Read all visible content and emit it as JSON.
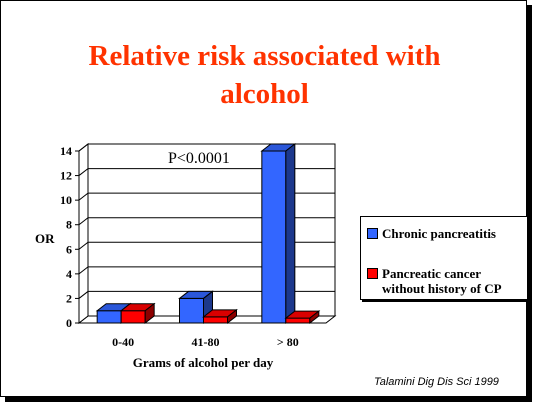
{
  "slide": {
    "title_line1": "Relative risk associated with",
    "title_line2": "alcohol",
    "title_color": "#ff3300",
    "citation": "Talamini Dig Dis Sci 1999"
  },
  "chart_data": {
    "type": "bar",
    "categories": [
      "0-40",
      "41-80",
      "> 80"
    ],
    "series": [
      {
        "name": "Chronic pancreatitis",
        "values": [
          1,
          2,
          14
        ],
        "color": "#3366ff"
      },
      {
        "name": "Pancreatic cancer without history of CP",
        "name_lines": [
          "Pancreatic cancer",
          "without history of CP"
        ],
        "values": [
          1,
          0.5,
          0.4
        ],
        "color": "#ff0000"
      }
    ],
    "xlabel": "Grams of alcohol per day",
    "ylabel": "OR",
    "ylim": [
      0,
      14
    ],
    "yticks": [
      0,
      2,
      4,
      6,
      8,
      10,
      12,
      14
    ],
    "annotation": "P<0.0001",
    "grid": true,
    "legend_position": "right",
    "style": "3d-column"
  }
}
